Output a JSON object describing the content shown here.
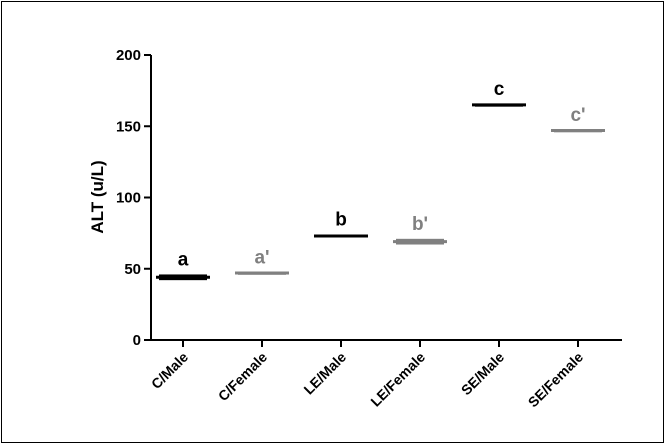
{
  "chart_data": {
    "type": "scatter",
    "title": "",
    "xlabel": "",
    "ylabel": "ALT (u/L)",
    "ylim": [
      0,
      200
    ],
    "yticks": [
      "0",
      "50",
      "100",
      "150",
      "200"
    ],
    "categories": [
      "C/Male",
      "C/Female",
      "LE/Male",
      "LE/Female",
      "SE/Male",
      "SE/Female"
    ],
    "values": [
      44,
      47,
      73,
      69,
      165,
      147
    ],
    "error_range": [
      [
        42,
        46
      ],
      [
        46.5,
        47.5
      ],
      [
        72,
        74
      ],
      [
        67,
        71
      ],
      [
        164.5,
        165.5
      ],
      [
        146.5,
        147.5
      ]
    ],
    "significance_labels": [
      "a",
      "a'",
      "b",
      "b'",
      "c",
      "c'"
    ],
    "colors": {
      "male": "#000000",
      "female": "#808080"
    },
    "grid": false,
    "legend": "none"
  }
}
